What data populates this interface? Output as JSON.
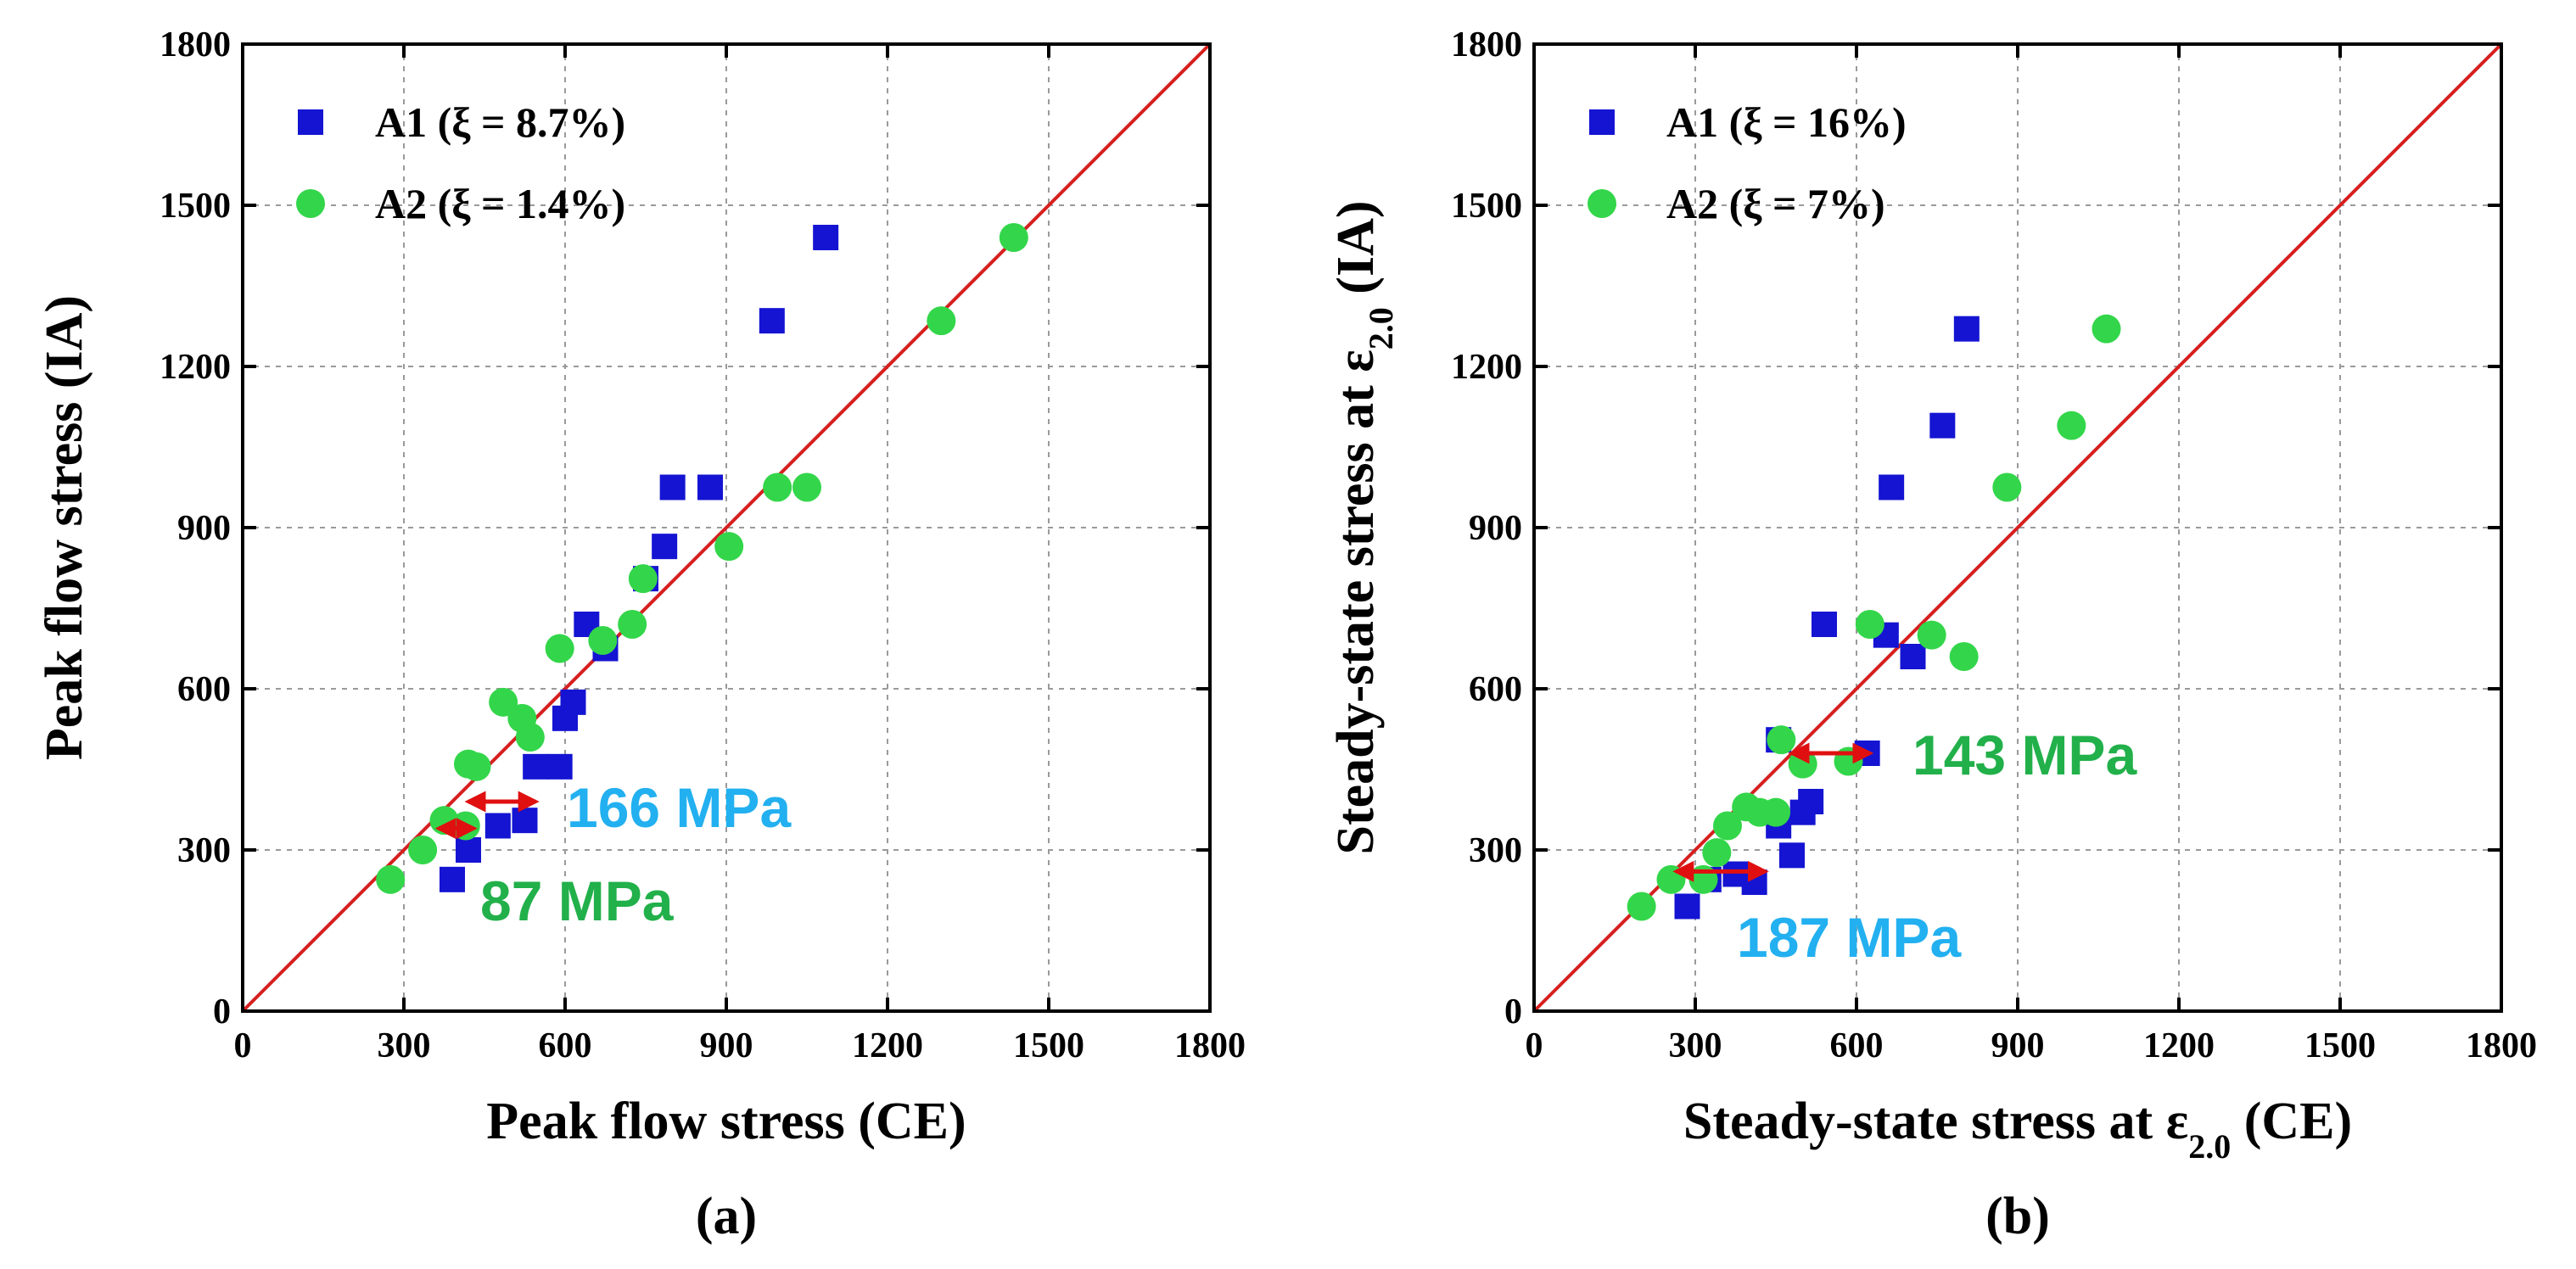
{
  "chart_data": [
    {
      "type": "scatter",
      "panel": "a",
      "caption": "(a)",
      "xlabel": "Peak flow stress (CE)",
      "ylabel": "Peak flow stress (IA)",
      "xlim": [
        0,
        1800
      ],
      "ylim": [
        0,
        1800
      ],
      "xticks": [
        "0",
        "300",
        "600",
        "900",
        "1200",
        "1500",
        "1800"
      ],
      "yticks": [
        "0",
        "300",
        "600",
        "900",
        "1200",
        "1500",
        "1800"
      ],
      "grid": true,
      "legend_position": "top-left",
      "identity_line": true,
      "series": [
        {
          "name": "A1 (ξ = 8.7%)",
          "marker": "square",
          "color": "#1414d2",
          "points": [
            [
              390,
              245
            ],
            [
              420,
              300
            ],
            [
              475,
              345
            ],
            [
              525,
              355
            ],
            [
              545,
              455
            ],
            [
              590,
              455
            ],
            [
              600,
              545
            ],
            [
              615,
              575
            ],
            [
              640,
              720
            ],
            [
              675,
              675
            ],
            [
              750,
              805
            ],
            [
              785,
              865
            ],
            [
              800,
              975
            ],
            [
              870,
              975
            ],
            [
              985,
              1285
            ],
            [
              1085,
              1440
            ]
          ]
        },
        {
          "name": "A2 (ξ = 1.4%)",
          "marker": "circle",
          "color": "#33d64a",
          "points": [
            [
              275,
              245
            ],
            [
              335,
              300
            ],
            [
              375,
              355
            ],
            [
              415,
              345
            ],
            [
              420,
              460
            ],
            [
              435,
              455
            ],
            [
              485,
              575
            ],
            [
              520,
              545
            ],
            [
              535,
              510
            ],
            [
              590,
              675
            ],
            [
              670,
              690
            ],
            [
              725,
              720
            ],
            [
              745,
              805
            ],
            [
              905,
              865
            ],
            [
              995,
              975
            ],
            [
              1050,
              975
            ],
            [
              1300,
              1285
            ],
            [
              1435,
              1440
            ]
          ]
        }
      ],
      "annotations": [
        {
          "text": "166 MPa",
          "color": "#22b0f0",
          "x_from": 410,
          "x_to": 555,
          "y": 390
        },
        {
          "text": "87 MPa",
          "color": "#22b04a",
          "x_from": 355,
          "x_to": 440,
          "y": 340
        }
      ]
    },
    {
      "type": "scatter",
      "panel": "b",
      "caption": "(b)",
      "xlabel_parts": [
        "Steady-state stress at ε",
        "2.0",
        " (CE)"
      ],
      "ylabel_parts": [
        "Steady-state stress at ε",
        "2.0",
        " (IA)"
      ],
      "xlim": [
        0,
        1800
      ],
      "ylim": [
        0,
        1800
      ],
      "xticks": [
        "0",
        "300",
        "600",
        "900",
        "1200",
        "1500",
        "1800"
      ],
      "yticks": [
        "0",
        "300",
        "600",
        "900",
        "1200",
        "1500",
        "1800"
      ],
      "grid": true,
      "legend_position": "top-left",
      "identity_line": true,
      "series": [
        {
          "name": "A1 (ξ = 16%)",
          "marker": "square",
          "color": "#1414d2",
          "points": [
            [
              285,
              195
            ],
            [
              325,
              245
            ],
            [
              375,
              255
            ],
            [
              410,
              240
            ],
            [
              455,
              345
            ],
            [
              455,
              505
            ],
            [
              480,
              290
            ],
            [
              500,
              370
            ],
            [
              515,
              390
            ],
            [
              540,
              720
            ],
            [
              620,
              480
            ],
            [
              655,
              700
            ],
            [
              665,
              975
            ],
            [
              705,
              660
            ],
            [
              760,
              1090
            ],
            [
              805,
              1270
            ]
          ]
        },
        {
          "name": "A2 (ξ = 7%)",
          "marker": "circle",
          "color": "#33d64a",
          "points": [
            [
              200,
              195
            ],
            [
              255,
              245
            ],
            [
              315,
              245
            ],
            [
              340,
              295
            ],
            [
              360,
              345
            ],
            [
              395,
              380
            ],
            [
              420,
              370
            ],
            [
              450,
              370
            ],
            [
              460,
              505
            ],
            [
              500,
              460
            ],
            [
              585,
              465
            ],
            [
              625,
              720
            ],
            [
              740,
              700
            ],
            [
              800,
              660
            ],
            [
              880,
              975
            ],
            [
              1000,
              1090
            ],
            [
              1065,
              1270
            ]
          ]
        }
      ],
      "annotations": [
        {
          "text": "143 MPa",
          "color": "#22b04a",
          "x_from": 470,
          "x_to": 635,
          "y": 480
        },
        {
          "text": "187 MPa",
          "color": "#22b0f0",
          "x_from": 255,
          "x_to": 440,
          "y": 260
        }
      ]
    }
  ]
}
